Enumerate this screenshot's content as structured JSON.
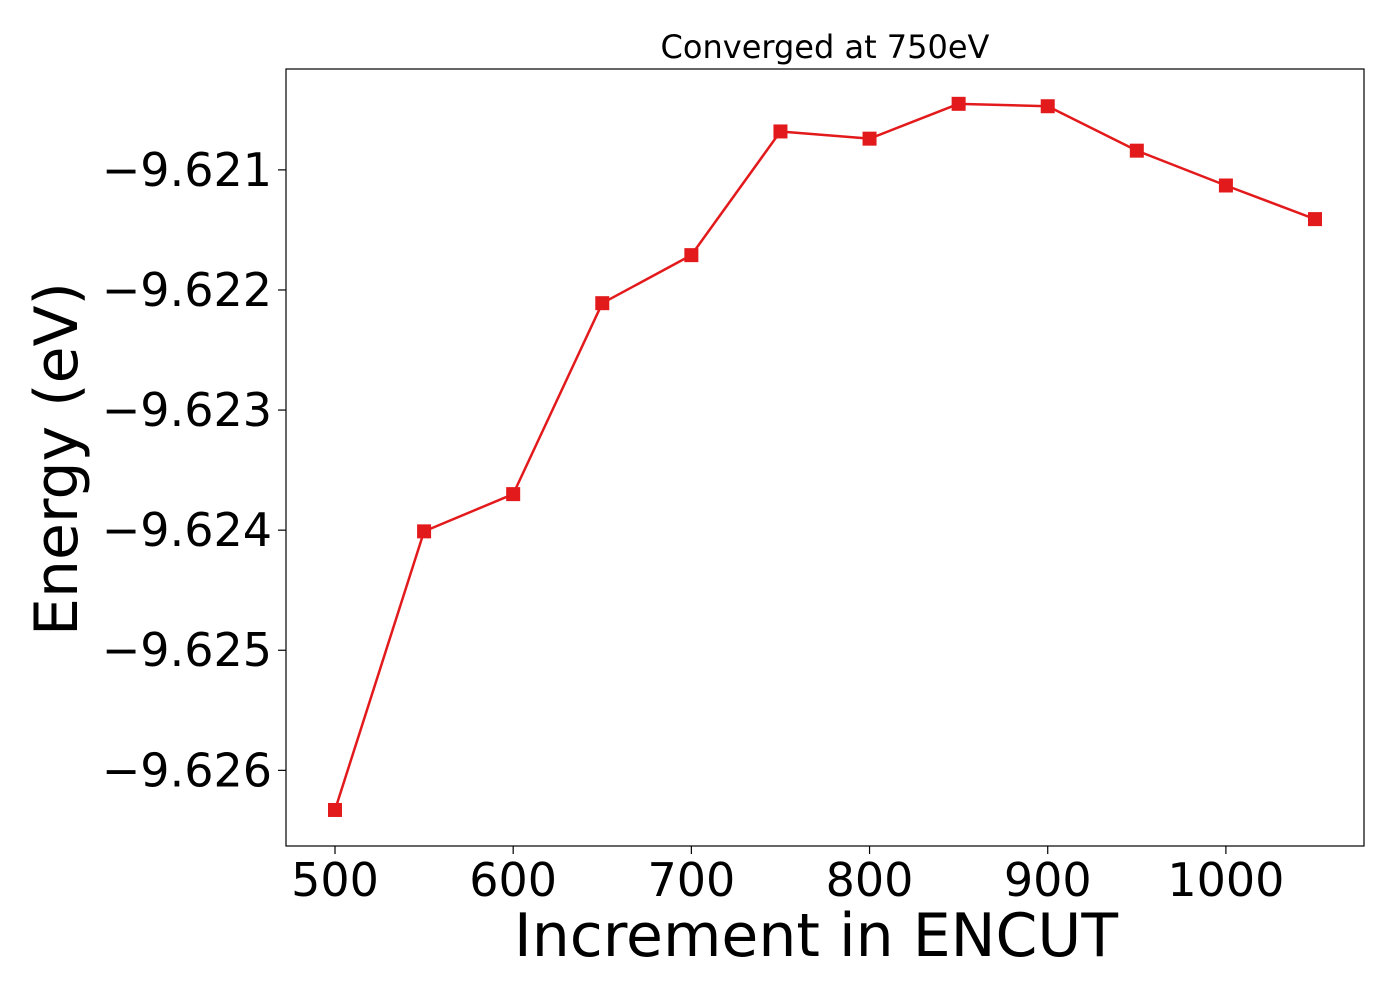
{
  "chart_data": {
    "type": "line",
    "title": "Converged at 750eV",
    "xlabel": "Increment in ENCUT",
    "ylabel": "Energy (eV)",
    "xlim": [
      472.5,
      1077.5
    ],
    "ylim": [
      -9.62663,
      -9.62016
    ],
    "xticks": [
      500,
      600,
      700,
      800,
      900,
      1000
    ],
    "xtick_labels": [
      "500",
      "600",
      "700",
      "800",
      "900",
      "1000"
    ],
    "yticks": [
      -9.621,
      -9.622,
      -9.623,
      -9.624,
      -9.625,
      -9.626
    ],
    "ytick_labels": [
      "−9.621",
      "−9.622",
      "−9.623",
      "−9.624",
      "−9.625",
      "−9.626"
    ],
    "grid": false,
    "legend": "none",
    "x": [
      500,
      550,
      600,
      650,
      700,
      750,
      800,
      850,
      900,
      950,
      1000,
      1050
    ],
    "series": [
      {
        "values": [
          -9.62633,
          -9.62401,
          -9.6237,
          -9.62211,
          -9.62171,
          -9.62068,
          -9.62074,
          -9.62045,
          -9.62047,
          -9.62084,
          -9.62113,
          -9.62141
        ],
        "color": "#e31a1c",
        "marker": "square"
      }
    ]
  }
}
